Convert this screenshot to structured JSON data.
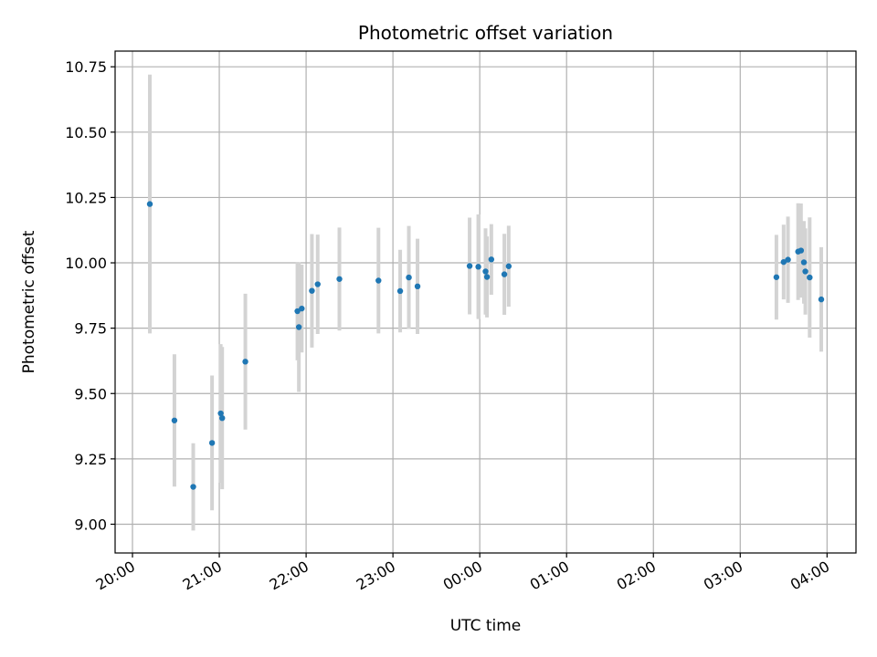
{
  "chart_data": {
    "type": "scatter",
    "title": "Photometric offset variation",
    "xlabel": "UTC time",
    "ylabel": "Photometric offset",
    "x_unit": "UTC time (HH:MM), 20:00 to 04:00 next day",
    "xlim": [
      "19:48",
      "04:20"
    ],
    "ylim": [
      8.89,
      10.81
    ],
    "xticks": [
      "20:00",
      "21:00",
      "22:00",
      "23:00",
      "00:00",
      "01:00",
      "02:00",
      "03:00",
      "04:00"
    ],
    "yticks": [
      "9.00",
      "9.25",
      "9.50",
      "9.75",
      "10.00",
      "10.25",
      "10.50",
      "10.75"
    ],
    "grid": true,
    "marker_color": "#1f77b4",
    "errorbar_color": "#d3d3d3",
    "points": [
      {
        "t": "20:12",
        "y": 10.225,
        "yerr": 0.495
      },
      {
        "t": "20:29",
        "y": 9.397,
        "yerr": 0.253
      },
      {
        "t": "20:42",
        "y": 9.143,
        "yerr": 0.167
      },
      {
        "t": "20:55",
        "y": 9.311,
        "yerr": 0.258
      },
      {
        "t": "21:01",
        "y": 9.424,
        "yerr": 0.265
      },
      {
        "t": "21:02",
        "y": 9.406,
        "yerr": 0.272
      },
      {
        "t": "21:18",
        "y": 9.622,
        "yerr": 0.26
      },
      {
        "t": "21:54",
        "y": 9.815,
        "yerr": 0.188
      },
      {
        "t": "21:55",
        "y": 9.754,
        "yerr": 0.248
      },
      {
        "t": "21:57",
        "y": 9.825,
        "yerr": 0.168
      },
      {
        "t": "22:04",
        "y": 9.893,
        "yerr": 0.217
      },
      {
        "t": "22:08",
        "y": 9.918,
        "yerr": 0.19
      },
      {
        "t": "22:23",
        "y": 9.938,
        "yerr": 0.197
      },
      {
        "t": "22:50",
        "y": 9.932,
        "yerr": 0.202
      },
      {
        "t": "23:05",
        "y": 9.892,
        "yerr": 0.158
      },
      {
        "t": "23:11",
        "y": 9.944,
        "yerr": 0.197
      },
      {
        "t": "23:17",
        "y": 9.91,
        "yerr": 0.182
      },
      {
        "t": "23:53",
        "y": 9.988,
        "yerr": 0.185
      },
      {
        "t": "23:59",
        "y": 9.985,
        "yerr": 0.2
      },
      {
        "t": "00:04",
        "y": 9.967,
        "yerr": 0.165
      },
      {
        "t": "00:05",
        "y": 9.946,
        "yerr": 0.155
      },
      {
        "t": "00:08",
        "y": 10.013,
        "yerr": 0.135
      },
      {
        "t": "00:17",
        "y": 9.956,
        "yerr": 0.155
      },
      {
        "t": "00:20",
        "y": 9.987,
        "yerr": 0.155
      },
      {
        "t": "03:25",
        "y": 9.945,
        "yerr": 0.162
      },
      {
        "t": "03:30",
        "y": 10.003,
        "yerr": 0.143
      },
      {
        "t": "03:33",
        "y": 10.012,
        "yerr": 0.165
      },
      {
        "t": "03:40",
        "y": 10.043,
        "yerr": 0.185
      },
      {
        "t": "03:42",
        "y": 10.047,
        "yerr": 0.18
      },
      {
        "t": "03:44",
        "y": 10.002,
        "yerr": 0.158
      },
      {
        "t": "03:45",
        "y": 9.967,
        "yerr": 0.165
      },
      {
        "t": "03:48",
        "y": 9.944,
        "yerr": 0.23
      },
      {
        "t": "03:56",
        "y": 9.86,
        "yerr": 0.2
      }
    ]
  }
}
